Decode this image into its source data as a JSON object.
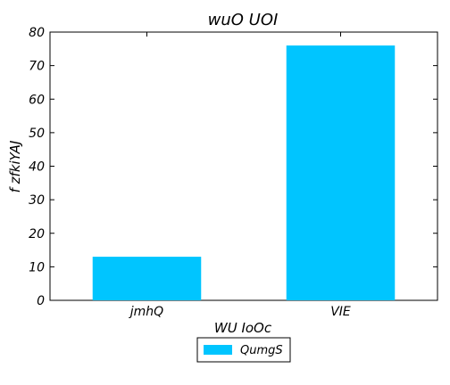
{
  "chart_data": {
    "type": "bar",
    "title": "wuO  UOI",
    "xlabel": "WU IoOc",
    "ylabel": "f zfkiYAJ",
    "categories": [
      "jmhQ",
      "VIE"
    ],
    "series": [
      {
        "name": "QumgS",
        "values": [
          13,
          76
        ],
        "color": "#00c5ff"
      }
    ],
    "ylim": [
      0,
      80
    ],
    "yticks": [
      0,
      10,
      20,
      30,
      40,
      50,
      60,
      70,
      80
    ],
    "grid": false,
    "legend_position": "bottom-center"
  }
}
